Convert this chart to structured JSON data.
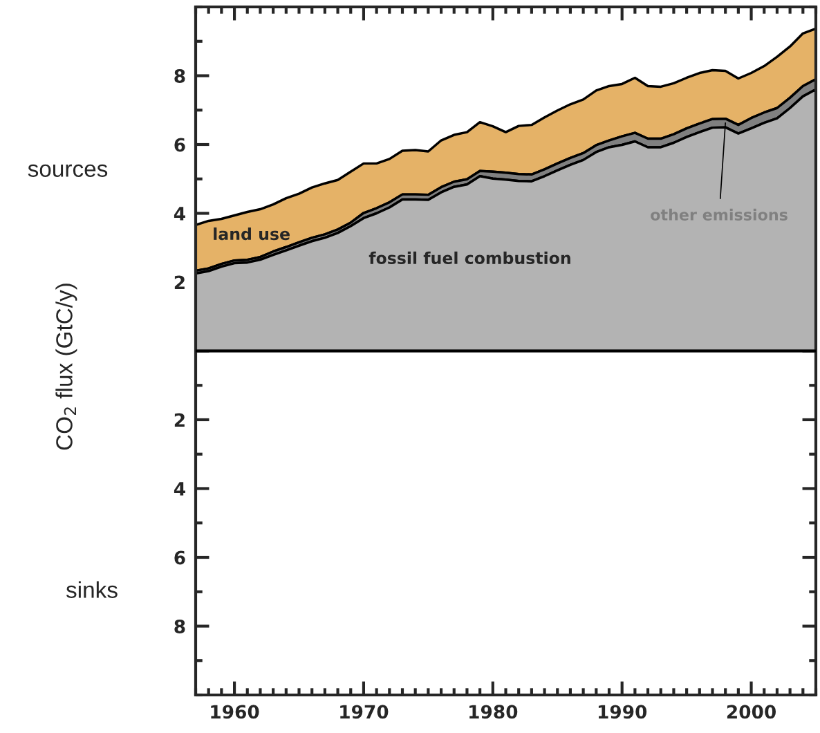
{
  "chart_data": {
    "type": "area",
    "stacked": true,
    "ylabel": "CO$_{2}$ flux (GtC/y)",
    "x": [
      1957,
      1958,
      1959,
      1960,
      1961,
      1962,
      1963,
      1964,
      1965,
      1966,
      1967,
      1968,
      1969,
      1970,
      1971,
      1972,
      1973,
      1974,
      1975,
      1976,
      1977,
      1978,
      1979,
      1980,
      1981,
      1982,
      1983,
      1984,
      1985,
      1986,
      1987,
      1988,
      1989,
      1990,
      1991,
      1992,
      1993,
      1994,
      1995,
      1996,
      1997,
      1998,
      1999,
      2000,
      2001,
      2002,
      2003,
      2004,
      2005
    ],
    "series": [
      {
        "name": "fossil fuel combustion",
        "color": "#b3b3b3",
        "values": [
          2.25,
          2.32,
          2.45,
          2.55,
          2.57,
          2.65,
          2.79,
          2.92,
          3.06,
          3.19,
          3.29,
          3.43,
          3.63,
          3.86,
          4.0,
          4.17,
          4.4,
          4.4,
          4.39,
          4.61,
          4.77,
          4.84,
          5.08,
          5.01,
          4.98,
          4.94,
          4.93,
          5.08,
          5.25,
          5.41,
          5.55,
          5.78,
          5.92,
          5.99,
          6.09,
          5.92,
          5.92,
          6.05,
          6.22,
          6.36,
          6.49,
          6.5,
          6.32,
          6.47,
          6.63,
          6.76,
          7.06,
          7.4,
          7.6
        ]
      },
      {
        "name": "other emissions",
        "color": "#808080",
        "values": [
          0.08,
          0.08,
          0.08,
          0.08,
          0.08,
          0.08,
          0.1,
          0.1,
          0.1,
          0.1,
          0.1,
          0.1,
          0.1,
          0.15,
          0.15,
          0.15,
          0.15,
          0.15,
          0.15,
          0.15,
          0.15,
          0.15,
          0.15,
          0.2,
          0.2,
          0.2,
          0.2,
          0.2,
          0.2,
          0.2,
          0.2,
          0.2,
          0.2,
          0.25,
          0.25,
          0.25,
          0.25,
          0.25,
          0.25,
          0.25,
          0.25,
          0.25,
          0.25,
          0.3,
          0.3,
          0.3,
          0.3,
          0.3,
          0.3
        ]
      },
      {
        "name": "land use",
        "color": "#e5b267",
        "values": [
          1.33,
          1.38,
          1.31,
          1.31,
          1.39,
          1.39,
          1.37,
          1.42,
          1.41,
          1.46,
          1.48,
          1.44,
          1.48,
          1.44,
          1.3,
          1.26,
          1.27,
          1.29,
          1.26,
          1.36,
          1.36,
          1.37,
          1.42,
          1.32,
          1.18,
          1.4,
          1.44,
          1.51,
          1.54,
          1.56,
          1.56,
          1.59,
          1.58,
          1.52,
          1.6,
          1.53,
          1.51,
          1.48,
          1.47,
          1.47,
          1.42,
          1.39,
          1.35,
          1.31,
          1.35,
          1.49,
          1.49,
          1.53,
          1.47
        ]
      }
    ],
    "xlim": [
      1957,
      2005
    ],
    "xticks": [
      1960,
      1970,
      1980,
      1990,
      2000
    ],
    "ylim": [
      -10,
      10
    ],
    "yticks": [
      {
        "value": -8,
        "label": "8"
      },
      {
        "value": -6,
        "label": "6"
      },
      {
        "value": -4,
        "label": "4"
      },
      {
        "value": -2,
        "label": "2"
      },
      {
        "value": 0,
        "label": null
      },
      2,
      4,
      6,
      8
    ],
    "ref_lines": [
      {
        "axis": "y",
        "value": 0,
        "color": "#000000"
      }
    ],
    "annotations": [
      "sources",
      "sinks"
    ],
    "legend": false,
    "grid": false
  }
}
